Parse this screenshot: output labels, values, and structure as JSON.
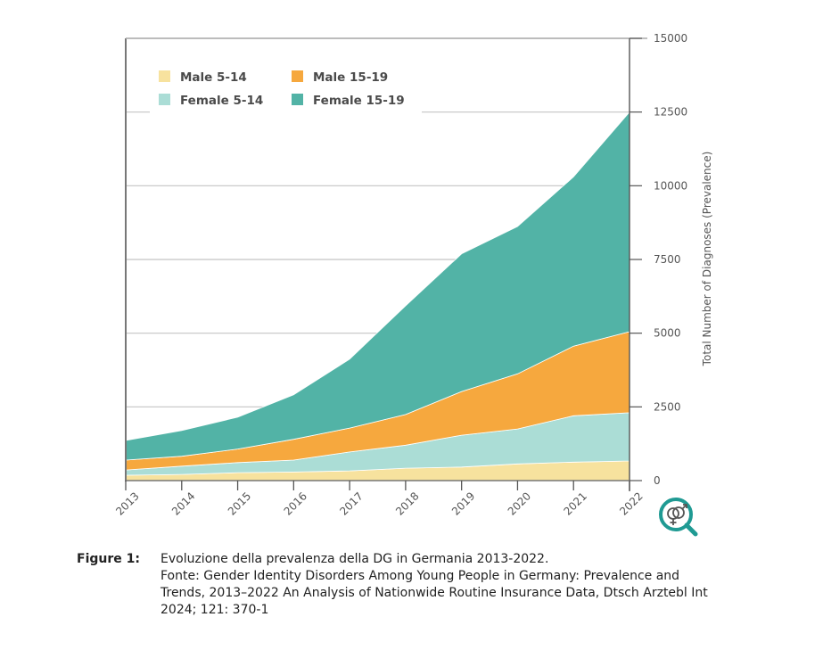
{
  "chart_data": {
    "type": "area",
    "stacked": true,
    "title": "",
    "xlabel": "",
    "ylabel": "Total Number of Diagnoses (Prevalence)",
    "x": [
      "2013",
      "2014",
      "2015",
      "2016",
      "2017",
      "2018",
      "2019",
      "2020",
      "2021",
      "2022"
    ],
    "ylim": [
      0,
      15000
    ],
    "yticks": [
      0,
      2500,
      5000,
      7500,
      10000,
      12500,
      15000
    ],
    "ytick_labels": [
      "0",
      "2500",
      "5000",
      "7500",
      "10000",
      "12500",
      "15000"
    ],
    "y_axis_side": "right",
    "grid": true,
    "legend_position": "top-left",
    "series": [
      {
        "name": "Male 5-14",
        "color": "#f7e29e",
        "values": [
          180,
          210,
          270,
          290,
          330,
          420,
          460,
          565,
          625,
          665
        ]
      },
      {
        "name": "Female 5-14",
        "color": "#abddd6",
        "values": [
          180,
          280,
          340,
          405,
          640,
          780,
          1080,
          1185,
          1575,
          1635
        ]
      },
      {
        "name": "Male 15-19",
        "color": "#f6a83e",
        "values": [
          335,
          335,
          460,
          705,
          810,
          1040,
          1480,
          1870,
          2360,
          2750
        ]
      },
      {
        "name": "Female 15-19",
        "color": "#52b3a6",
        "values": [
          665,
          875,
          1080,
          1510,
          2340,
          3690,
          4670,
          5000,
          5740,
          7450
        ]
      }
    ],
    "legend_order": [
      "Male 5-14",
      "Male 15-19",
      "Female 5-14",
      "Female 15-19"
    ]
  },
  "icon": {
    "name": "gender-magnifier-icon",
    "color": "#1f9a93"
  },
  "caption": {
    "label": "Figure 1:",
    "lines": [
      "Evoluzione della prevalenza della DG in Germania 2013-2022.",
      "Fonte: Gender Identity Disorders Among Young People in Germany: Prevalence and",
      "Trends, 2013–2022 An Analysis of Nationwide Routine Insurance Data, Dtsch Arztebl Int",
      "2024; 121: 370-1"
    ]
  }
}
